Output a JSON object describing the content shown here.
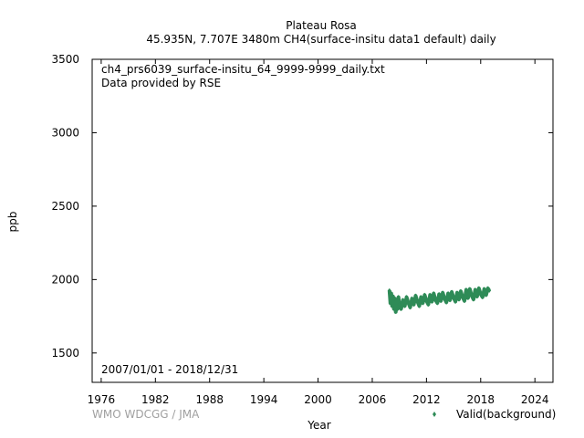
{
  "chart_data": {
    "type": "scatter",
    "title": "Plateau Rosa",
    "subtitle": "45.935N, 7.707E 3480m    CH4(surface-insitu data1 default) daily",
    "xlabel": "Year",
    "ylabel": "ppb",
    "xlim": [
      1975,
      2026
    ],
    "ylim": [
      1300,
      3500
    ],
    "x_ticks": [
      "1976",
      "1982",
      "1988",
      "1994",
      "2000",
      "2006",
      "2012",
      "2018",
      "2024"
    ],
    "y_ticks": [
      "1500",
      "2000",
      "2500",
      "3000",
      "3500"
    ],
    "annotations": {
      "filename": "ch4_prs6039_surface-insitu_64_9999-9999_daily.txt",
      "provider": "Data provided by RSE",
      "period": "2007/01/01 - 2018/12/31"
    },
    "credit": "WMO WDCGG / JMA",
    "legend_position": "bottom-right",
    "colors": {
      "series": "#2e8b57",
      "axes": "#000000",
      "credit": "#a0a0a0"
    },
    "series": [
      {
        "name": "Valid(background)",
        "marker": "diamond",
        "x": [
          2007.9,
          2008.0,
          2008.1,
          2008.2,
          2008.3,
          2008.4,
          2008.5,
          2008.6,
          2008.7,
          2008.8,
          2008.9,
          2009.0,
          2009.2,
          2009.4,
          2009.6,
          2009.8,
          2010.0,
          2010.2,
          2010.4,
          2010.6,
          2010.8,
          2011.0,
          2011.2,
          2011.4,
          2011.6,
          2011.8,
          2012.0,
          2012.2,
          2012.4,
          2012.6,
          2012.8,
          2013.0,
          2013.2,
          2013.4,
          2013.6,
          2013.8,
          2014.0,
          2014.2,
          2014.4,
          2014.6,
          2014.8,
          2015.0,
          2015.2,
          2015.4,
          2015.6,
          2015.8,
          2016.0,
          2016.2,
          2016.4,
          2016.6,
          2016.8,
          2017.0,
          2017.2,
          2017.4,
          2017.6,
          2017.8,
          2018.0,
          2018.2,
          2018.4,
          2018.6,
          2018.8,
          2018.95
        ],
        "y": [
          1925,
          1840,
          1905,
          1820,
          1885,
          1800,
          1870,
          1780,
          1860,
          1800,
          1880,
          1830,
          1800,
          1860,
          1820,
          1880,
          1840,
          1810,
          1870,
          1830,
          1890,
          1850,
          1820,
          1880,
          1840,
          1895,
          1855,
          1830,
          1895,
          1850,
          1905,
          1860,
          1840,
          1900,
          1855,
          1910,
          1870,
          1845,
          1905,
          1860,
          1915,
          1875,
          1850,
          1910,
          1865,
          1920,
          1880,
          1855,
          1930,
          1875,
          1935,
          1890,
          1865,
          1930,
          1885,
          1940,
          1900,
          1880,
          1935,
          1895,
          1940,
          1925
        ]
      }
    ]
  }
}
